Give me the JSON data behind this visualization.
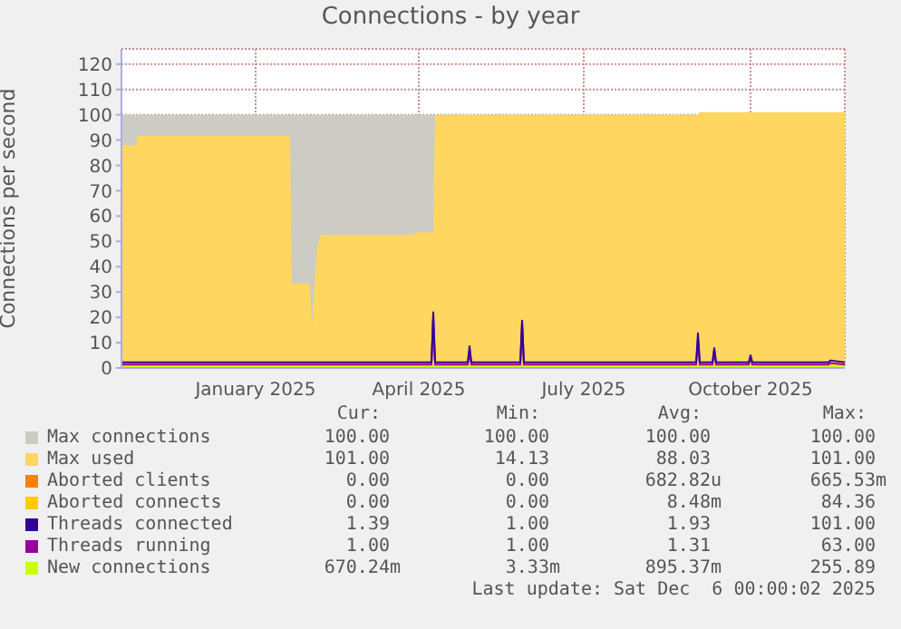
{
  "chart_data": {
    "type": "line",
    "title": "Connections - by year",
    "ylabel": "Connections per second",
    "x": [
      "2024-10-19",
      "2024-10-27",
      "2024-10-28",
      "2024-11-21",
      "2024-12-11",
      "2024-12-31",
      "2025-01-20",
      "2025-01-21",
      "2025-01-31",
      "2025-02-01",
      "2025-02-04",
      "2025-02-06",
      "2025-03-01",
      "2025-03-29",
      "2025-03-30",
      "2025-04-08",
      "2025-04-09",
      "2025-04-10",
      "2025-04-11",
      "2025-04-28",
      "2025-04-29",
      "2025-04-30",
      "2025-05-27",
      "2025-05-28",
      "2025-05-29",
      "2025-07-09",
      "2025-09-01",
      "2025-09-02",
      "2025-09-03",
      "2025-09-10",
      "2025-09-11",
      "2025-09-12",
      "2025-09-23",
      "2025-09-24",
      "2025-09-25",
      "2025-09-30",
      "2025-10-01",
      "2025-10-02",
      "2025-10-27",
      "2025-11-13",
      "2025-11-14",
      "2025-11-22"
    ],
    "series": [
      {
        "name": "Max connections",
        "type": "area",
        "color": "#ccccc4",
        "values": [
          100,
          100,
          100,
          100,
          100,
          100,
          100,
          100,
          100,
          100,
          100,
          100,
          100,
          100,
          100,
          100,
          100,
          100,
          100,
          100,
          100,
          100,
          100,
          100,
          100,
          100,
          100,
          100,
          100,
          100,
          100,
          100,
          100,
          100,
          100,
          100,
          100,
          100,
          100,
          100,
          100,
          100
        ]
      },
      {
        "name": "Max used",
        "type": "area",
        "color": "#ffd660",
        "values": [
          88,
          88,
          91.6,
          91.6,
          91.6,
          91.6,
          91.6,
          33.3,
          33.3,
          16.5,
          48,
          52.5,
          52.5,
          52.5,
          53.5,
          53.5,
          53.5,
          100,
          100,
          100,
          100,
          100,
          100,
          100,
          100,
          100,
          100,
          100,
          101,
          101,
          101,
          101,
          101,
          101,
          101,
          101,
          101,
          101,
          101,
          101,
          101,
          101
        ]
      },
      {
        "name": "Aborted clients",
        "color": "#ff7f00",
        "values": [
          null,
          null,
          null,
          null,
          null,
          null,
          null,
          null,
          null,
          null,
          null,
          null,
          null,
          null,
          null,
          null,
          null,
          null,
          null,
          null,
          null,
          null,
          null,
          null,
          null,
          null,
          null,
          null,
          null,
          null,
          null,
          null,
          null,
          null,
          null,
          null,
          null,
          null,
          null,
          null,
          null,
          null
        ]
      },
      {
        "name": "Aborted connects",
        "color": "#ffcc00",
        "values": [
          null,
          null,
          null,
          null,
          null,
          null,
          null,
          null,
          null,
          null,
          null,
          null,
          null,
          null,
          null,
          null,
          null,
          null,
          null,
          null,
          null,
          null,
          null,
          null,
          null,
          null,
          null,
          null,
          null,
          null,
          null,
          null,
          null,
          null,
          null,
          null,
          null,
          null,
          null,
          null,
          null,
          null
        ]
      },
      {
        "name": "Threads connected",
        "color": "#330099",
        "values": [
          2.2,
          2.2,
          2.2,
          2.2,
          2.2,
          2.2,
          2.2,
          2.2,
          2.2,
          2.2,
          2.2,
          2.2,
          2.2,
          2.2,
          2.2,
          2.2,
          22,
          2.2,
          2.2,
          2.2,
          8.6,
          2.2,
          2.2,
          18.7,
          2.2,
          2.2,
          2.2,
          13.7,
          2.2,
          2.2,
          7.9,
          2.2,
          2.2,
          2.2,
          2.2,
          2.2,
          5,
          2.2,
          2.2,
          2.2,
          3,
          2.2
        ]
      },
      {
        "name": "Threads running",
        "color": "#990099",
        "values": [
          1.3,
          1.3,
          1.3,
          1.3,
          1.3,
          1.3,
          1.3,
          1.3,
          1.3,
          1.3,
          1.3,
          1.3,
          1.3,
          1.3,
          1.3,
          1.3,
          21,
          1.3,
          1.3,
          1.3,
          7,
          1.3,
          1.3,
          18,
          1.3,
          1.3,
          1.3,
          12,
          1.3,
          1.3,
          7,
          1.3,
          1.3,
          1.3,
          1.3,
          1.3,
          4,
          1.3,
          1.3,
          1.3,
          2,
          1.3
        ]
      },
      {
        "name": "New connections",
        "color": "#ccff00",
        "values": [
          0.5,
          0.5,
          0.5,
          0.5,
          0.5,
          0.5,
          0.5,
          0.5,
          0.5,
          0.5,
          0.5,
          0.5,
          0.5,
          0.5,
          0.5,
          0.5,
          0.5,
          0.5,
          0.5,
          0.5,
          0.5,
          0.5,
          0.5,
          0.5,
          0.5,
          0.5,
          0.5,
          0.5,
          0.5,
          0.5,
          0.5,
          0.5,
          0.5,
          4,
          0.5,
          0.5,
          0.5,
          0.5,
          0.5,
          0.5,
          0.5,
          0.5
        ]
      }
    ],
    "xlim": [
      "2024-10-19",
      "2025-11-22"
    ],
    "xticks": [
      {
        "value": "2025-01-01",
        "label": "January 2025"
      },
      {
        "value": "2025-04-01",
        "label": "April 2025"
      },
      {
        "value": "2025-07-01",
        "label": "July 2025"
      },
      {
        "value": "2025-10-01",
        "label": "October 2025"
      }
    ],
    "ylim": [
      0,
      126
    ],
    "yticks": [
      0,
      10,
      20,
      30,
      40,
      50,
      60,
      70,
      80,
      90,
      100,
      110,
      120
    ],
    "grid": true,
    "legend": "bottom",
    "annotations": [
      "Cur:",
      "Min:",
      "Avg:",
      "Max:",
      "100.00",
      "100.00",
      "100.00",
      "100.00",
      "101.00",
      "14.13",
      "88.03",
      "101.00",
      "0.00",
      "0.00",
      "682.82u",
      "665.53m",
      "0.00",
      "0.00",
      "8.48m",
      "84.36",
      "1.39",
      "1.00",
      "1.93",
      "101.00",
      "1.00",
      "1.00",
      "1.31",
      "63.00",
      "670.24m",
      "3.33m",
      "895.37m",
      "255.89",
      "Last update: Sat Dec  6 00:00:02 2025"
    ]
  }
}
